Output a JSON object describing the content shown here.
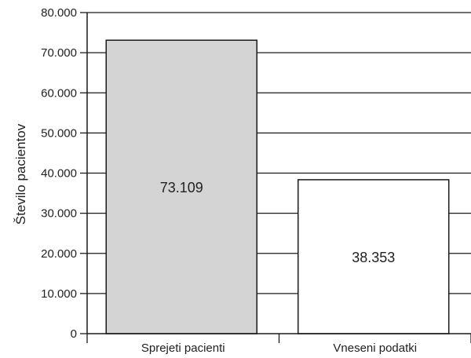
{
  "chart_data": {
    "type": "bar",
    "title": "",
    "xlabel": "",
    "ylabel": "Število pacientov",
    "categories": [
      "Sprejeti pacienti",
      "Vneseni podatki"
    ],
    "values": [
      73109,
      38353
    ],
    "value_labels": [
      "73.109",
      "38.353"
    ],
    "ylim": [
      0,
      80000
    ],
    "y_ticks": [
      0,
      10000,
      20000,
      30000,
      40000,
      50000,
      60000,
      70000,
      80000
    ],
    "y_tick_labels": [
      "0",
      "10.000",
      "20.000",
      "30.000",
      "40.000",
      "50.000",
      "60.000",
      "70.000",
      "80.000"
    ],
    "bar_colors": [
      "#d4d4d4",
      "#ffffff"
    ],
    "grid": true,
    "legend": "none"
  }
}
